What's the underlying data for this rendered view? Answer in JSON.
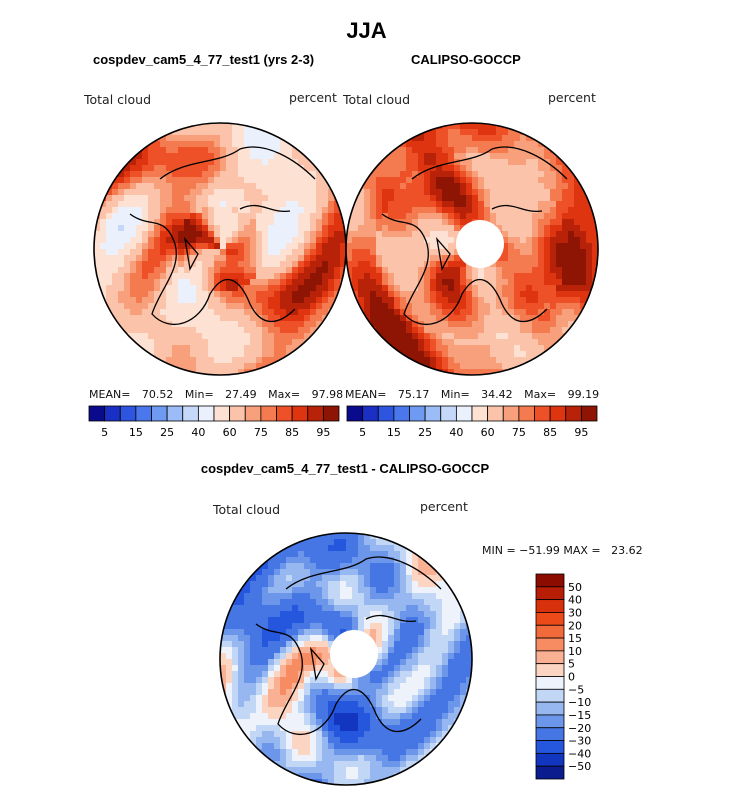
{
  "figure": {
    "season": "JJA",
    "panel_a_title": "cospdev_cam5_4_77_test1 (yrs 2-3)",
    "panel_b_title": "CALIPSO-GOCCP",
    "panel_c_title": "cospdev_cam5_4_77_test1 - CALIPSO-GOCCP",
    "variable": "Total cloud",
    "units": "percent"
  },
  "chart_data": [
    {
      "type": "heatmap",
      "projection": "north-polar-stereographic",
      "title": "cospdev_cam5_4_77_test1 (yrs 2-3)",
      "left_label": "Total cloud",
      "right_label": "percent",
      "stats": {
        "mean_label": "MEAN=",
        "mean": "70.52",
        "min_label": "Min=",
        "min": "27.49",
        "max_label": "Max=",
        "max": "97.98"
      },
      "colorbar": {
        "orientation": "horizontal",
        "tick_labels": [
          "5",
          "15",
          "25",
          "40",
          "60",
          "75",
          "85",
          "95"
        ],
        "colors": [
          "#0a0a8c",
          "#1a2fc4",
          "#2e55e0",
          "#4a78ec",
          "#6f9af2",
          "#9bbcf6",
          "#c6d8fa",
          "#eaf0fc",
          "#fde2d4",
          "#fbc4aa",
          "#f8a07c",
          "#f47a50",
          "#ee5128",
          "#de3410",
          "#b82208",
          "#8e1404"
        ]
      }
    },
    {
      "type": "heatmap",
      "projection": "north-polar-stereographic",
      "title": "CALIPSO-GOCCP",
      "left_label": "Total cloud",
      "right_label": "percent",
      "stats": {
        "mean_label": "MEAN=",
        "mean": "75.17",
        "min_label": "Min=",
        "min": "34.42",
        "max_label": "Max=",
        "max": "99.19"
      },
      "colorbar": {
        "orientation": "horizontal",
        "tick_labels": [
          "5",
          "15",
          "25",
          "40",
          "60",
          "75",
          "85",
          "95"
        ],
        "colors": [
          "#0a0a8c",
          "#1a2fc4",
          "#2e55e0",
          "#4a78ec",
          "#6f9af2",
          "#9bbcf6",
          "#c6d8fa",
          "#eaf0fc",
          "#fde2d4",
          "#fbc4aa",
          "#f8a07c",
          "#f47a50",
          "#ee5128",
          "#de3410",
          "#b82208",
          "#8e1404"
        ]
      }
    },
    {
      "type": "heatmap",
      "projection": "north-polar-stereographic",
      "title": "cospdev_cam5_4_77_test1 - CALIPSO-GOCCP",
      "left_label": "Total cloud",
      "right_label": "percent",
      "stats_text": "MIN = −51.99 MAX =   23.62",
      "stats": {
        "min": "-51.99",
        "max": "23.62"
      },
      "colorbar": {
        "orientation": "vertical",
        "tick_labels": [
          "50",
          "40",
          "30",
          "20",
          "15",
          "10",
          "5",
          "0",
          "−5",
          "−10",
          "−15",
          "−20",
          "−30",
          "−40",
          "−50"
        ],
        "colors": [
          "#8c0d00",
          "#b81e06",
          "#d8320c",
          "#ec4a18",
          "#f36a3a",
          "#f78c62",
          "#fab092",
          "#fcd4c2",
          "#edf2fb",
          "#c2d6f6",
          "#96b7f0",
          "#6c96ea",
          "#4576e4",
          "#2456de",
          "#1236c0",
          "#0a1c8e"
        ]
      }
    }
  ]
}
